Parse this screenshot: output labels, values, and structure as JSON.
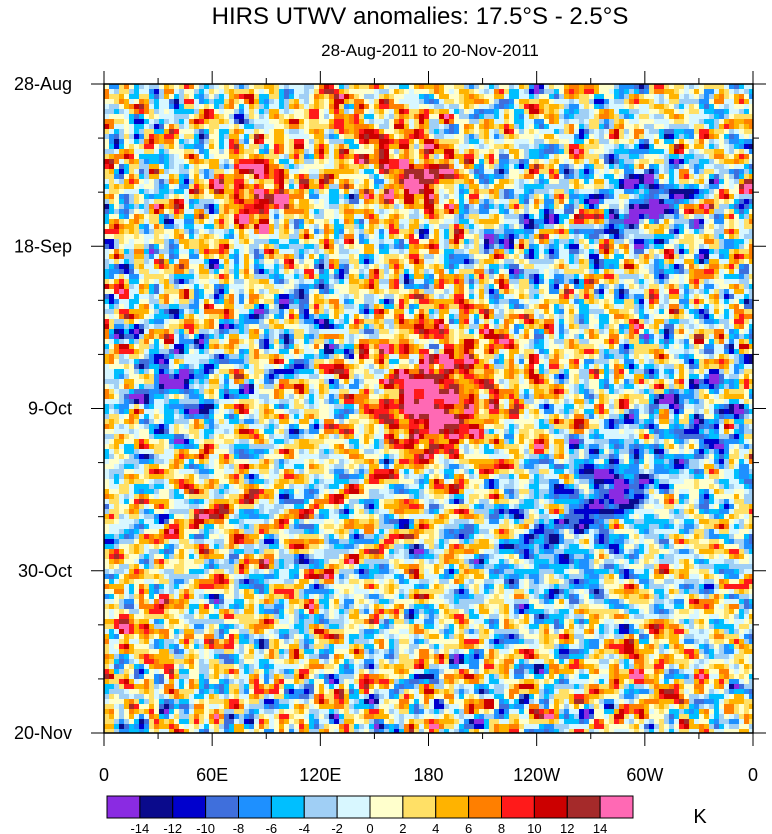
{
  "chart_data": {
    "type": "heatmap",
    "title": "HIRS UTWV anomalies: 17.5°S - 2.5°S",
    "subtitle": "28-Aug-2011 to 20-Nov-2011",
    "xlabel": "",
    "ylabel": "",
    "x_ticks": [
      {
        "lon": 0,
        "label": "0"
      },
      {
        "lon": 60,
        "label": "60E"
      },
      {
        "lon": 120,
        "label": "120E"
      },
      {
        "lon": 180,
        "label": "180"
      },
      {
        "lon": 240,
        "label": "120W"
      },
      {
        "lon": 300,
        "label": "60W"
      },
      {
        "lon": 360,
        "label": "0"
      }
    ],
    "y_ticks": [
      {
        "day": 0,
        "label": "28-Aug"
      },
      {
        "day": 21,
        "label": "18-Sep"
      },
      {
        "day": 42,
        "label": "9-Oct"
      },
      {
        "day": 63,
        "label": "30-Oct"
      },
      {
        "day": 84,
        "label": "20-Nov"
      }
    ],
    "xlim": [
      0,
      360
    ],
    "ylim_days": [
      0,
      84
    ],
    "colorbar": {
      "unit": "K",
      "levels": [
        -14,
        -12,
        -10,
        -8,
        -6,
        -4,
        -2,
        0,
        2,
        4,
        6,
        8,
        10,
        12,
        14
      ],
      "labels": [
        "-14",
        "-12",
        "-10",
        "-8",
        "-6",
        "-4",
        "-2",
        "0",
        "2",
        "4",
        "6",
        "8",
        "10",
        "12",
        "14"
      ],
      "colors": [
        "#8a2be2",
        "#0a0a8c",
        "#0000cd",
        "#3f6fdc",
        "#1e90ff",
        "#00bfff",
        "#a0cff5",
        "#d8f7ff",
        "#ffffcc",
        "#ffe066",
        "#ffb300",
        "#ff7f00",
        "#ff1a1a",
        "#cc0000",
        "#a52a2a",
        "#ff69b4"
      ]
    },
    "features": [
      {
        "lon": 180,
        "day": 42,
        "value": 12,
        "note": "warm anomaly center near dateline"
      },
      {
        "lon": 175,
        "day": 12,
        "value": 12,
        "note": "warm anomaly"
      },
      {
        "lon": 85,
        "day": 14,
        "value": 12,
        "note": "warm anomaly"
      },
      {
        "lon": 282,
        "day": 52,
        "value": -12,
        "note": "cold anomaly"
      },
      {
        "lon": 300,
        "day": 15,
        "value": -12,
        "note": "cold anomaly"
      },
      {
        "lon": 40,
        "day": 39,
        "value": -10,
        "note": "cold anomaly"
      }
    ]
  }
}
